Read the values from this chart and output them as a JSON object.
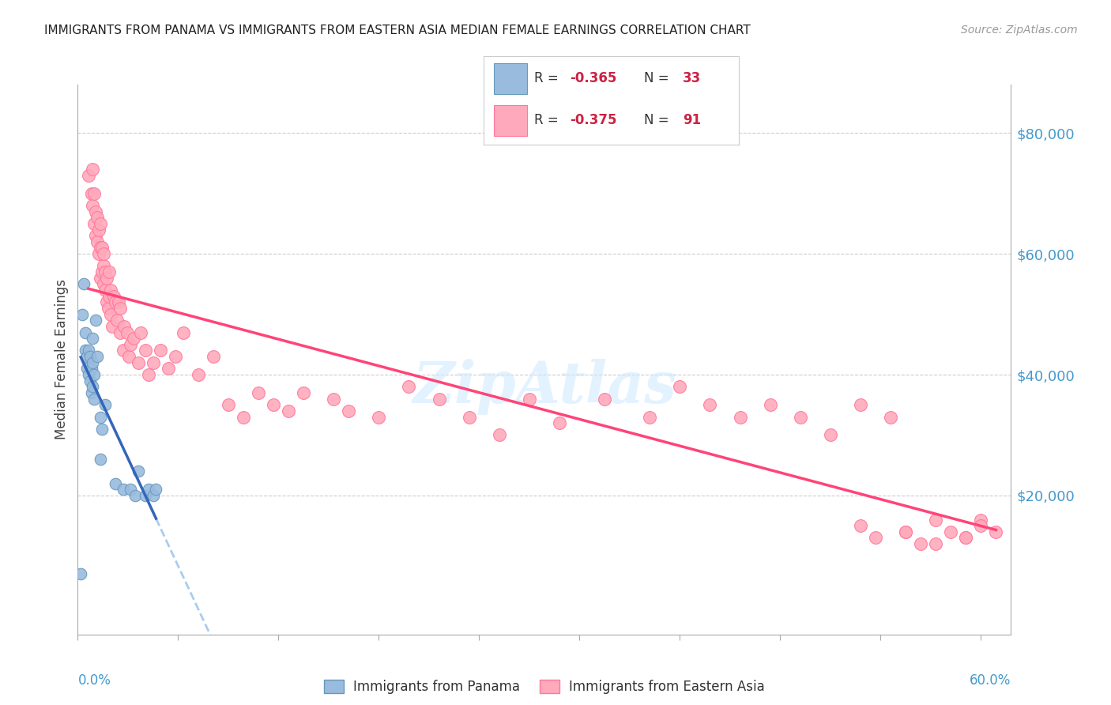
{
  "title": "IMMIGRANTS FROM PANAMA VS IMMIGRANTS FROM EASTERN ASIA MEDIAN FEMALE EARNINGS CORRELATION CHART",
  "source": "Source: ZipAtlas.com",
  "ylabel": "Median Female Earnings",
  "yticks": [
    0,
    20000,
    40000,
    60000,
    80000
  ],
  "ytick_labels": [
    "",
    "$20,000",
    "$40,000",
    "$60,000",
    "$80,000"
  ],
  "xlim": [
    0.0,
    0.62
  ],
  "ylim": [
    -3000,
    88000
  ],
  "color_panama": "#99BBDD",
  "color_eastern_asia": "#FFAABC",
  "color_panama_edge": "#6699BB",
  "color_eastern_asia_edge": "#FF7799",
  "color_panama_line": "#3366BB",
  "color_eastern_asia_line": "#FF4477",
  "color_dashed": "#AACCEE",
  "background_color": "#FFFFFF",
  "panama_x": [
    0.002,
    0.003,
    0.004,
    0.005,
    0.005,
    0.006,
    0.006,
    0.007,
    0.007,
    0.008,
    0.008,
    0.009,
    0.009,
    0.01,
    0.01,
    0.01,
    0.011,
    0.011,
    0.012,
    0.013,
    0.015,
    0.015,
    0.016,
    0.018,
    0.025,
    0.03,
    0.035,
    0.038,
    0.04,
    0.045,
    0.047,
    0.05,
    0.052
  ],
  "panama_y": [
    7000,
    50000,
    55000,
    44000,
    47000,
    41000,
    43000,
    40000,
    44000,
    39000,
    43000,
    37000,
    41000,
    38000,
    42000,
    46000,
    36000,
    40000,
    49000,
    43000,
    33000,
    26000,
    31000,
    35000,
    22000,
    21000,
    21000,
    20000,
    24000,
    20000,
    21000,
    20000,
    21000
  ],
  "eastern_asia_x": [
    0.007,
    0.009,
    0.01,
    0.01,
    0.011,
    0.011,
    0.012,
    0.012,
    0.013,
    0.013,
    0.014,
    0.014,
    0.015,
    0.015,
    0.015,
    0.016,
    0.016,
    0.017,
    0.017,
    0.017,
    0.018,
    0.018,
    0.019,
    0.019,
    0.02,
    0.021,
    0.021,
    0.022,
    0.022,
    0.023,
    0.024,
    0.025,
    0.026,
    0.027,
    0.028,
    0.028,
    0.03,
    0.031,
    0.033,
    0.034,
    0.035,
    0.037,
    0.04,
    0.042,
    0.045,
    0.047,
    0.05,
    0.055,
    0.06,
    0.065,
    0.07,
    0.08,
    0.09,
    0.1,
    0.11,
    0.12,
    0.13,
    0.14,
    0.15,
    0.17,
    0.18,
    0.2,
    0.22,
    0.24,
    0.26,
    0.28,
    0.3,
    0.32,
    0.35,
    0.38,
    0.4,
    0.42,
    0.44,
    0.46,
    0.48,
    0.5,
    0.52,
    0.54,
    0.55,
    0.57,
    0.58,
    0.59,
    0.6,
    0.52,
    0.53,
    0.55,
    0.56,
    0.57,
    0.59,
    0.6,
    0.61
  ],
  "eastern_asia_y": [
    73000,
    70000,
    68000,
    74000,
    65000,
    70000,
    63000,
    67000,
    62000,
    66000,
    60000,
    64000,
    56000,
    61000,
    65000,
    57000,
    61000,
    58000,
    55000,
    60000,
    54000,
    57000,
    52000,
    56000,
    51000,
    57000,
    53000,
    50000,
    54000,
    48000,
    53000,
    52000,
    49000,
    52000,
    47000,
    51000,
    44000,
    48000,
    47000,
    43000,
    45000,
    46000,
    42000,
    47000,
    44000,
    40000,
    42000,
    44000,
    41000,
    43000,
    47000,
    40000,
    43000,
    35000,
    33000,
    37000,
    35000,
    34000,
    37000,
    36000,
    34000,
    33000,
    38000,
    36000,
    33000,
    30000,
    36000,
    32000,
    36000,
    33000,
    38000,
    35000,
    33000,
    35000,
    33000,
    30000,
    35000,
    33000,
    14000,
    12000,
    14000,
    13000,
    16000,
    15000,
    13000,
    14000,
    12000,
    16000,
    13000,
    15000,
    14000
  ]
}
